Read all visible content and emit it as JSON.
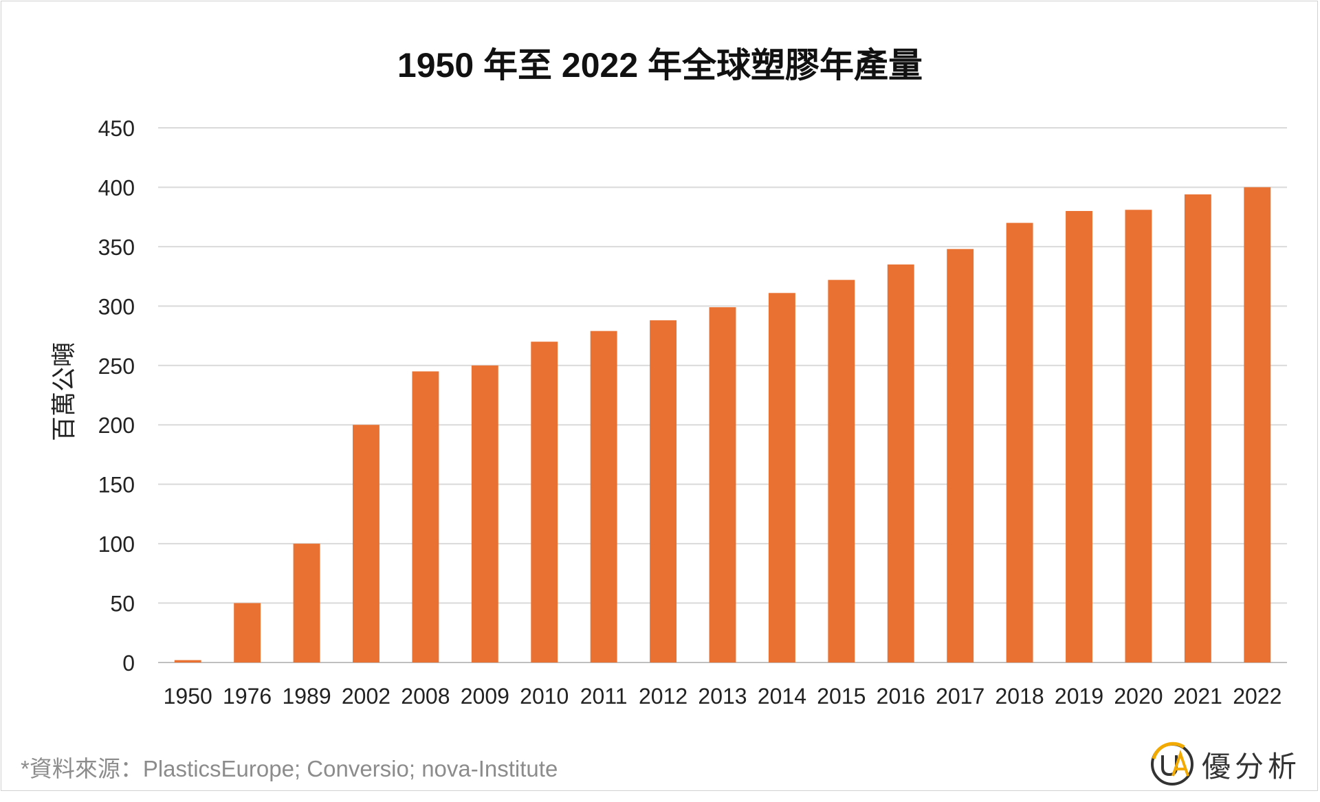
{
  "chart_data": {
    "type": "bar",
    "title": "1950 年至 2022 年全球塑膠年產量",
    "ylabel": "百萬公噸",
    "xlabel": "",
    "ylim": [
      0,
      450
    ],
    "yticks": [
      0,
      50,
      100,
      150,
      200,
      250,
      300,
      350,
      400,
      450
    ],
    "grid": true,
    "categories": [
      "1950",
      "1976",
      "1989",
      "2002",
      "2008",
      "2009",
      "2010",
      "2011",
      "2012",
      "2013",
      "2014",
      "2015",
      "2016",
      "2017",
      "2018",
      "2019",
      "2020",
      "2021",
      "2022"
    ],
    "values": [
      2,
      50,
      100,
      200,
      245,
      250,
      270,
      279,
      288,
      299,
      311,
      322,
      335,
      348,
      370,
      380,
      381,
      394,
      400
    ],
    "bar_color": "#E97132"
  },
  "source": "*資料來源：PlasticsEurope; Conversio; nova-Institute",
  "brand": {
    "name": "優分析",
    "logo": "ua-logo"
  }
}
